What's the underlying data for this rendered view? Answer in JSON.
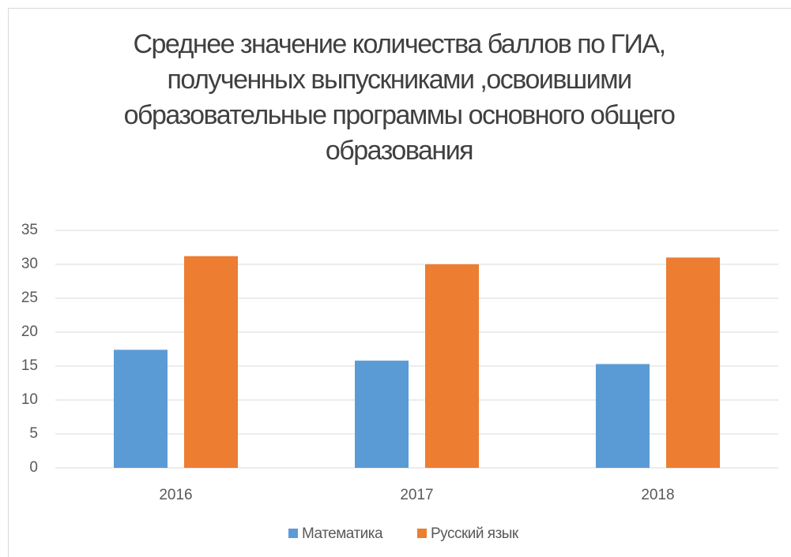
{
  "chart_data": {
    "type": "bar",
    "title": "Среднее значение количества баллов по ГИА, полученных выпускниками ,освоившими образовательные программы основного общего образования",
    "categories": [
      "2016",
      "2017",
      "2018"
    ],
    "series": [
      {
        "name": "Математика",
        "color": "#5b9bd5",
        "values": [
          17.4,
          15.8,
          15.3
        ]
      },
      {
        "name": "Русский язык",
        "color": "#ed7d31",
        "values": [
          31.2,
          30.0,
          31.0
        ]
      }
    ],
    "ylim": [
      0,
      35
    ],
    "yticks": [
      0,
      5,
      10,
      15,
      20,
      25,
      30,
      35
    ],
    "grid": true,
    "legend": "bottom"
  }
}
